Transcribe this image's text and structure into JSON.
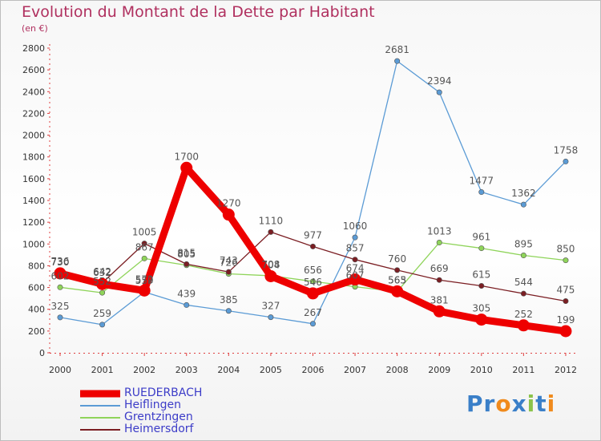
{
  "chart": {
    "title": "Evolution du Montant de la Dette par Habitant",
    "subtitle": "(en €)"
  },
  "chart_data": {
    "type": "line",
    "title": "Evolution du Montant de la Dette par Habitant",
    "subtitle": "(en €)",
    "x": [
      "2000",
      "2001",
      "2002",
      "2003",
      "2004",
      "2005",
      "2006",
      "2007",
      "2008",
      "2009",
      "2010",
      "2011",
      "2012"
    ],
    "ylim": [
      0,
      2800
    ],
    "yticks": [
      0,
      200,
      400,
      600,
      800,
      1000,
      1200,
      1400,
      1600,
      1800,
      2000,
      2200,
      2400,
      2600,
      2800
    ],
    "grid": false,
    "legend_position": "bottom-left",
    "series": [
      {
        "name": "RUEDERBACH",
        "color": "#ee0000",
        "values": [
          730,
          632,
          572,
          1700,
          1270,
          704,
          546,
          674,
          565,
          381,
          305,
          252,
          199
        ]
      },
      {
        "name": "Heiflingen",
        "color": "#5b9bd5",
        "values": [
          325,
          259,
          559,
          439,
          385,
          327,
          267,
          1060,
          2681,
          2394,
          1477,
          1362,
          1758
        ]
      },
      {
        "name": "Grentzingen",
        "color": "#8fd45a",
        "values": [
          602,
          552,
          867,
          805,
          726,
          708,
          656,
          607,
          563,
          1013,
          961,
          895,
          850
        ]
      },
      {
        "name": "Heimersdorf",
        "color": "#7b1e23",
        "values": [
          736,
          642,
          1005,
          815,
          743,
          1110,
          977,
          857,
          760,
          669,
          615,
          544,
          475
        ]
      }
    ]
  },
  "legend": {
    "items": [
      {
        "label": "RUEDERBACH"
      },
      {
        "label": "Heiflingen"
      },
      {
        "label": "Grentzingen"
      },
      {
        "label": "Heimersdorf"
      }
    ]
  },
  "brand": {
    "name": "Proxiti",
    "letters": [
      "P",
      "r",
      "o",
      "x",
      "i",
      "t",
      "i"
    ],
    "letter_colors": [
      "#3a7fc8",
      "#3a7fc8",
      "#f08a1c",
      "#3a7fc8",
      "#8bc34a",
      "#3a7fc8",
      "#f08a1c"
    ]
  }
}
